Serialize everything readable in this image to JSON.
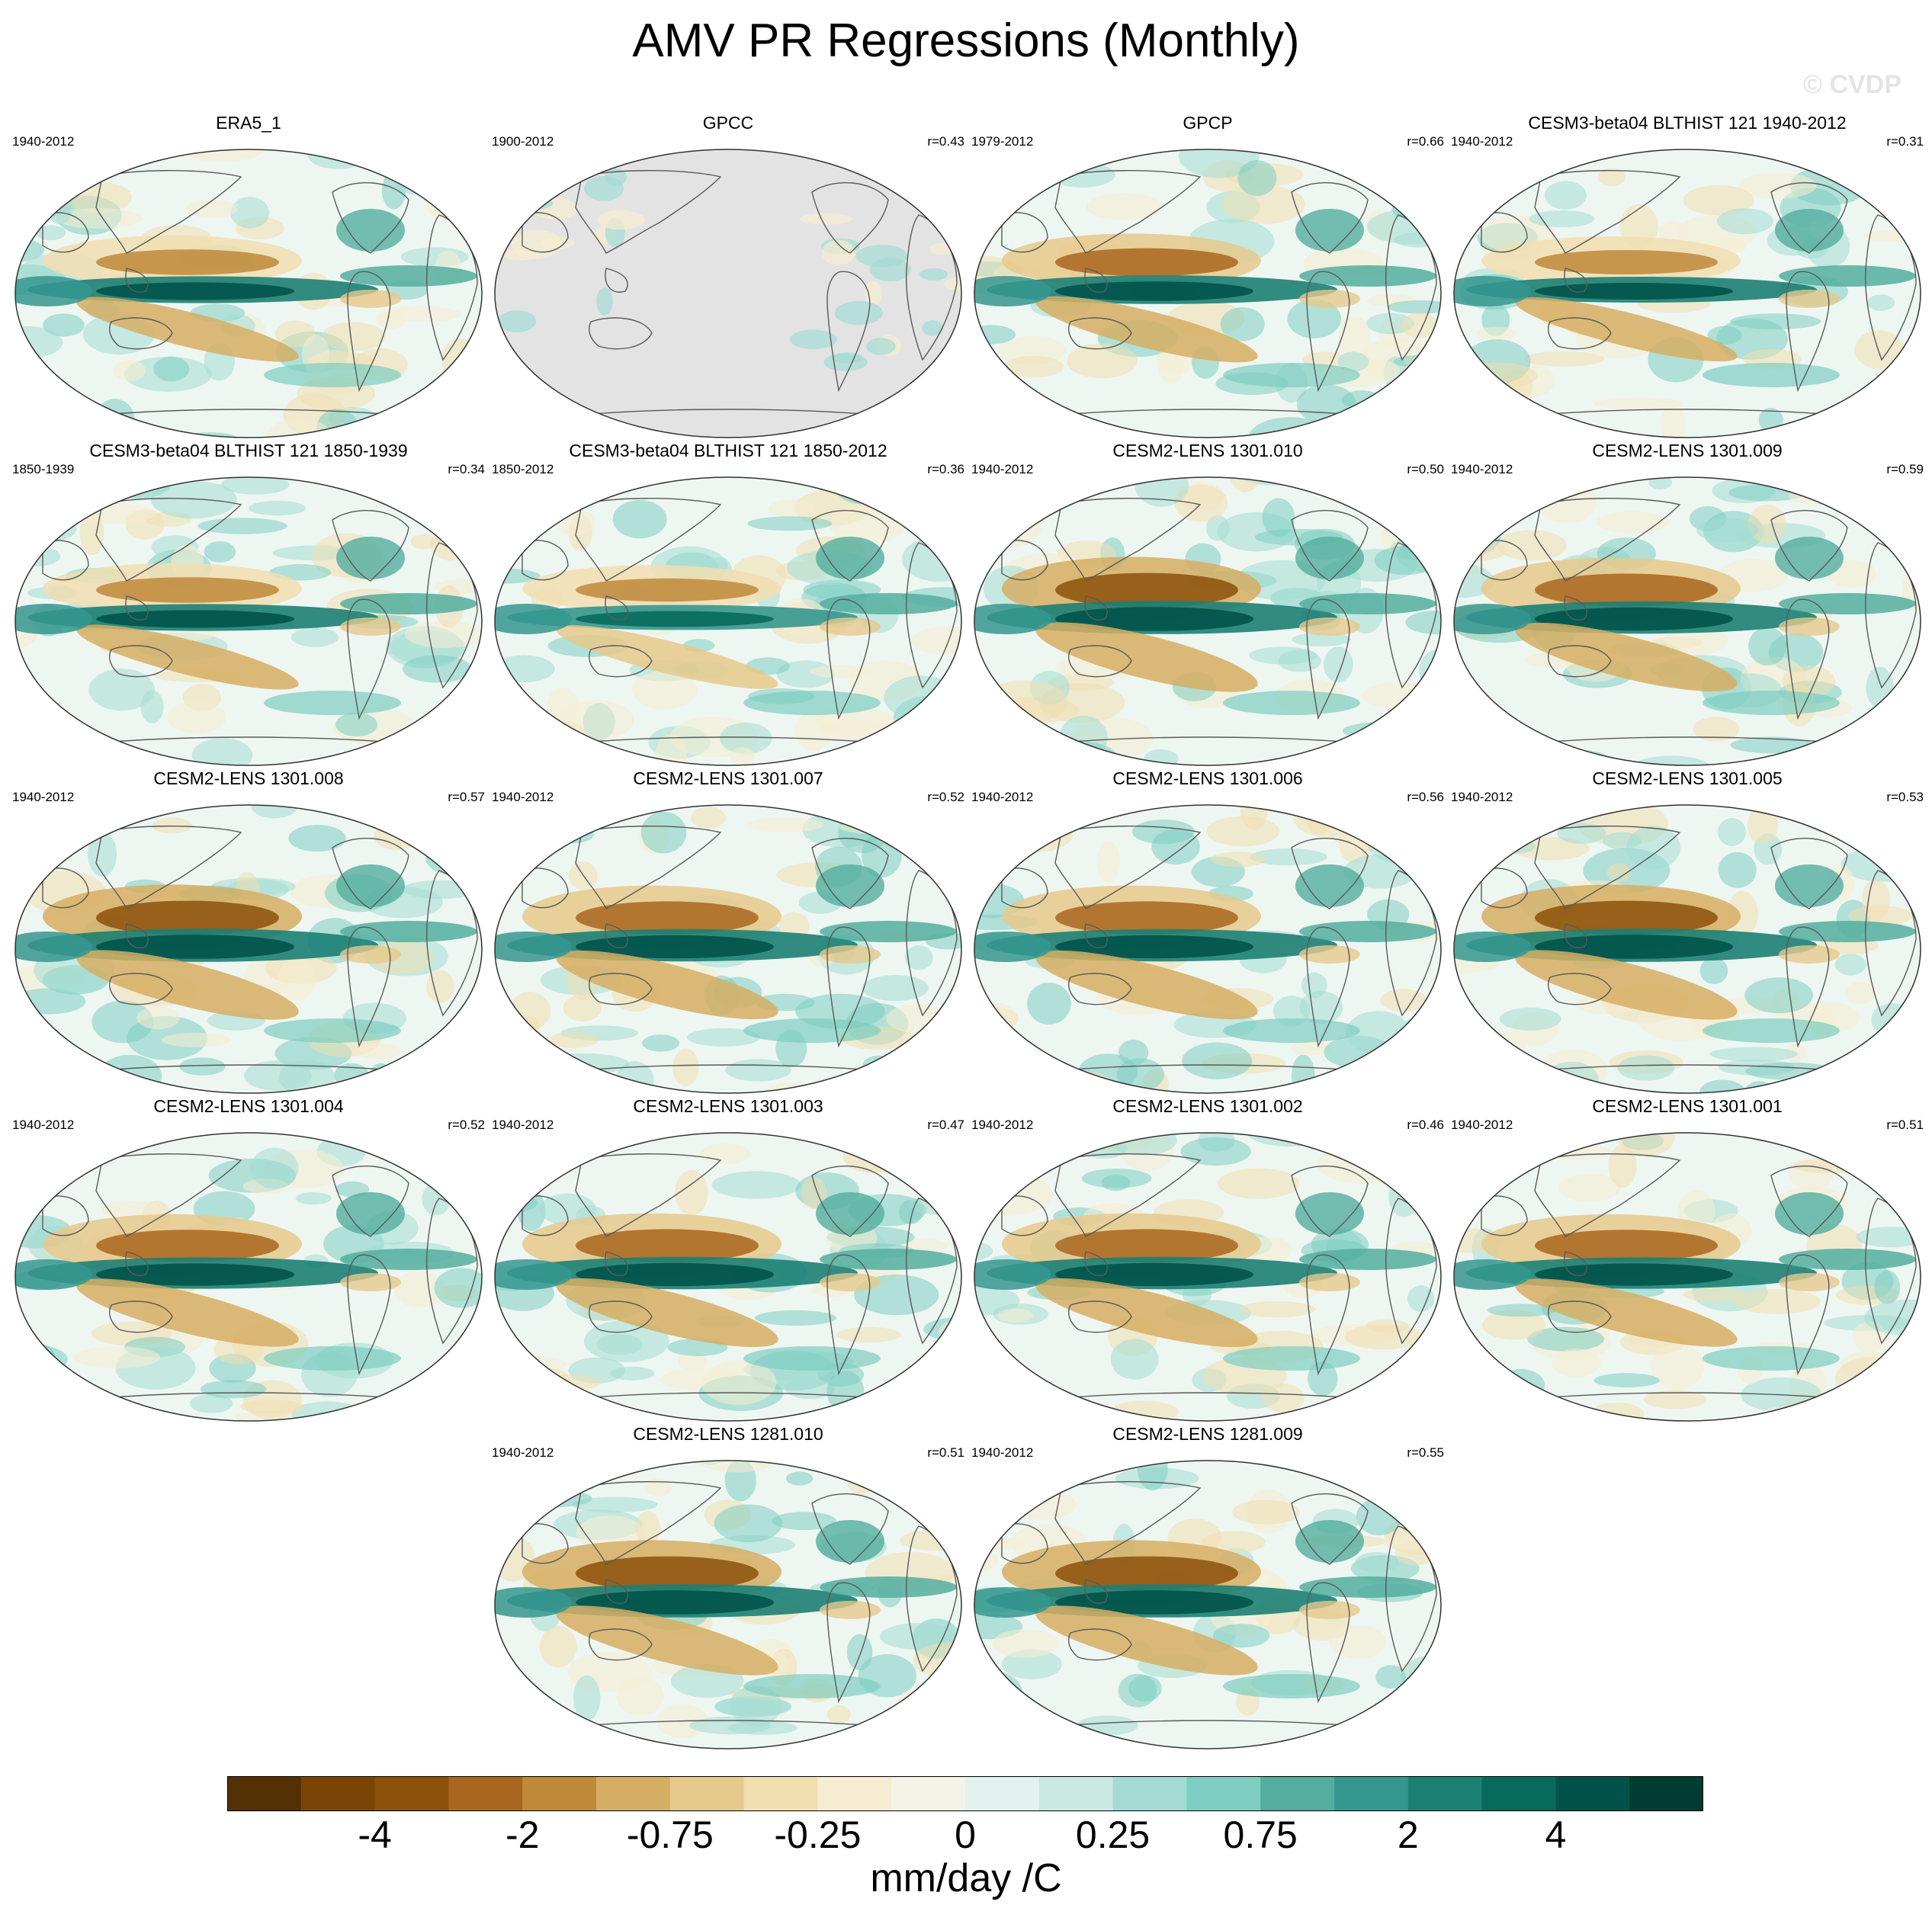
{
  "title": "AMV PR Regressions (Monthly)",
  "watermark": "© CVDP",
  "chart_data": {
    "type": "heatmap",
    "title": "AMV PR Regressions (Monthly)",
    "units": "mm/day /C",
    "colorbar": {
      "labels": [
        "-4",
        "-2",
        "-0.75",
        "-0.25",
        "0",
        "0.25",
        "0.75",
        "2",
        "4"
      ],
      "colors": [
        "#543005",
        "#7a4407",
        "#8c510a",
        "#a9661e",
        "#c08839",
        "#d6ae63",
        "#e6c98c",
        "#f1deb1",
        "#f6ecd1",
        "#f5f2e8",
        "#e3f2ef",
        "#c9e9e3",
        "#a4dcd3",
        "#7ecdc1",
        "#53ae9f",
        "#35978f",
        "#1c7f74",
        "#086a5d",
        "#01534a",
        "#003c30"
      ]
    },
    "panels": [
      {
        "name": "ERA5_1",
        "years": "1940-2012",
        "r": ""
      },
      {
        "name": "GPCC",
        "years": "1900-2012",
        "r": "r=0.43"
      },
      {
        "name": "GPCP",
        "years": "1979-2012",
        "r": "r=0.66"
      },
      {
        "name": "CESM3-beta04 BLTHIST 121 1940-2012",
        "years": "1940-2012",
        "r": "r=0.31"
      },
      {
        "name": "CESM3-beta04 BLTHIST 121 1850-1939",
        "years": "1850-1939",
        "r": "r=0.34"
      },
      {
        "name": "CESM3-beta04 BLTHIST 121 1850-2012",
        "years": "1850-2012",
        "r": "r=0.36"
      },
      {
        "name": "CESM2-LENS 1301.010",
        "years": "1940-2012",
        "r": "r=0.50"
      },
      {
        "name": "CESM2-LENS 1301.009",
        "years": "1940-2012",
        "r": "r=0.59"
      },
      {
        "name": "CESM2-LENS 1301.008",
        "years": "1940-2012",
        "r": "r=0.57"
      },
      {
        "name": "CESM2-LENS 1301.007",
        "years": "1940-2012",
        "r": "r=0.52"
      },
      {
        "name": "CESM2-LENS 1301.006",
        "years": "1940-2012",
        "r": "r=0.56"
      },
      {
        "name": "CESM2-LENS 1301.005",
        "years": "1940-2012",
        "r": "r=0.53"
      },
      {
        "name": "CESM2-LENS 1301.004",
        "years": "1940-2012",
        "r": "r=0.52"
      },
      {
        "name": "CESM2-LENS 1301.003",
        "years": "1940-2012",
        "r": "r=0.47"
      },
      {
        "name": "CESM2-LENS 1301.002",
        "years": "1940-2012",
        "r": "r=0.46"
      },
      {
        "name": "CESM2-LENS 1301.001",
        "years": "1940-2012",
        "r": "r=0.51"
      },
      {
        "name": "CESM2-LENS 1281.010",
        "years": "1940-2012",
        "r": "r=0.51"
      },
      {
        "name": "CESM2-LENS 1281.009",
        "years": "1940-2012",
        "r": "r=0.55"
      }
    ]
  }
}
